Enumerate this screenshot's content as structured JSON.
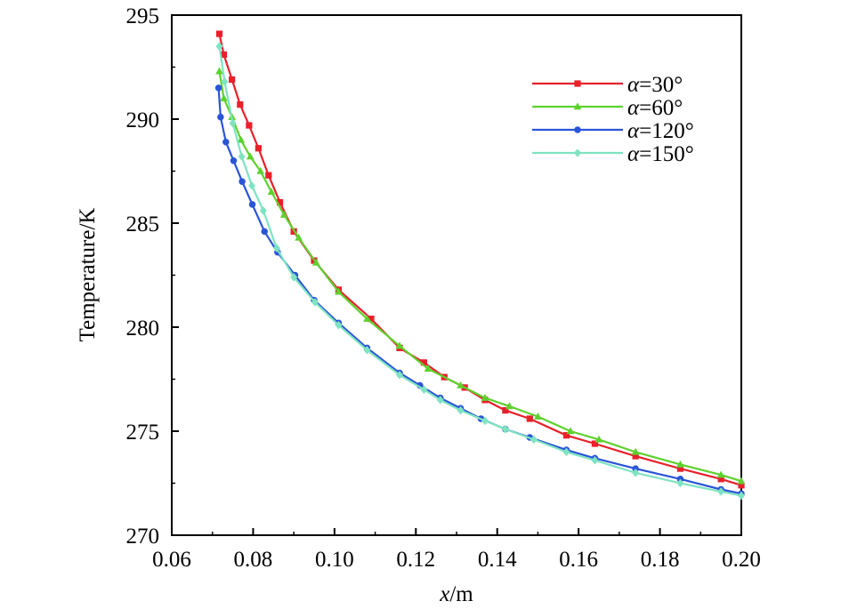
{
  "chart_data": {
    "type": "line",
    "title": "",
    "xlabel": "x/m",
    "xlabel_var": "x",
    "xlabel_unit": "/m",
    "ylabel": "Temperature/K",
    "xlim": [
      0.06,
      0.2
    ],
    "ylim": [
      270,
      295
    ],
    "xticks": [
      "0.06",
      "0.08",
      "0.10",
      "0.12",
      "0.14",
      "0.16",
      "0.18",
      "0.20"
    ],
    "yticks": [
      "270",
      "275",
      "280",
      "285",
      "290",
      "295"
    ],
    "grid": false,
    "legend_position": "top-right",
    "series": [
      {
        "name": "α=30°",
        "symbol": "α",
        "value_text": "=30°",
        "color": "#e8202a",
        "marker": "square",
        "x": [
          0.0717,
          0.0728,
          0.0748,
          0.0768,
          0.079,
          0.0813,
          0.0838,
          0.0866,
          0.09,
          0.095,
          0.101,
          0.109,
          0.116,
          0.122,
          0.127,
          0.132,
          0.137,
          0.142,
          0.148,
          0.157,
          0.164,
          0.174,
          0.185,
          0.195,
          0.2
        ],
        "values": [
          294.1,
          293.1,
          291.9,
          290.7,
          289.7,
          288.6,
          287.3,
          286.0,
          284.6,
          283.2,
          281.8,
          280.4,
          279.0,
          278.3,
          277.6,
          277.1,
          276.5,
          276.0,
          275.6,
          274.8,
          274.4,
          273.8,
          273.2,
          272.7,
          272.4
        ]
      },
      {
        "name": "α=60°",
        "symbol": "α",
        "value_text": "=60°",
        "color": "#5ed12e",
        "marker": "triangle",
        "x": [
          0.0717,
          0.0728,
          0.0748,
          0.077,
          0.0793,
          0.0818,
          0.0845,
          0.0876,
          0.0912,
          0.0955,
          0.101,
          0.108,
          0.116,
          0.123,
          0.131,
          0.137,
          0.143,
          0.15,
          0.158,
          0.165,
          0.174,
          0.185,
          0.195,
          0.2
        ],
        "values": [
          292.3,
          291.0,
          290.1,
          289.0,
          288.2,
          287.5,
          286.5,
          285.4,
          284.3,
          283.1,
          281.7,
          280.4,
          279.1,
          278.0,
          277.2,
          276.6,
          276.2,
          275.7,
          275.0,
          274.6,
          274.0,
          273.4,
          272.9,
          272.6
        ]
      },
      {
        "name": "α=120°",
        "symbol": "α",
        "value_text": "=120°",
        "color": "#2a55d8",
        "marker": "circle",
        "x": [
          0.0715,
          0.072,
          0.0733,
          0.0752,
          0.0773,
          0.0798,
          0.0828,
          0.086,
          0.0903,
          0.095,
          0.101,
          0.108,
          0.116,
          0.121,
          0.126,
          0.131,
          0.136,
          0.142,
          0.148,
          0.157,
          0.164,
          0.174,
          0.185,
          0.195,
          0.2
        ],
        "values": [
          291.5,
          290.1,
          288.9,
          288.0,
          287.0,
          285.9,
          284.6,
          283.6,
          282.5,
          281.3,
          280.2,
          279.0,
          277.8,
          277.2,
          276.6,
          276.1,
          275.6,
          275.1,
          274.7,
          274.1,
          273.7,
          273.2,
          272.7,
          272.2,
          272.0
        ]
      },
      {
        "name": "α=150°",
        "symbol": "α",
        "value_text": "=150°",
        "color": "#7fe3c2",
        "marker": "diamond",
        "x": [
          0.0717,
          0.073,
          0.075,
          0.0772,
          0.0797,
          0.0825,
          0.0858,
          0.09,
          0.0952,
          0.101,
          0.108,
          0.116,
          0.122,
          0.126,
          0.131,
          0.137,
          0.142,
          0.149,
          0.157,
          0.164,
          0.174,
          0.185,
          0.195,
          0.2
        ],
        "values": [
          293.5,
          291.8,
          289.8,
          288.2,
          286.8,
          285.6,
          283.8,
          282.4,
          281.2,
          280.1,
          278.9,
          277.7,
          277.0,
          276.5,
          276.0,
          275.5,
          275.1,
          274.6,
          274.0,
          273.6,
          273.0,
          272.5,
          272.1,
          271.9
        ]
      }
    ]
  }
}
